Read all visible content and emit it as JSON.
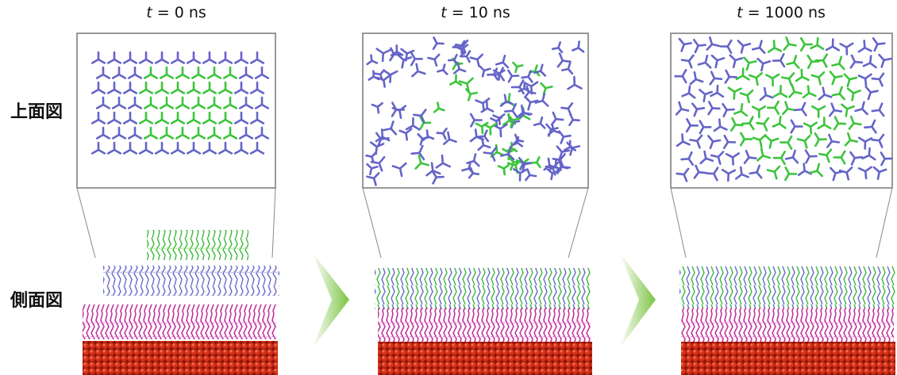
{
  "panels": [
    {
      "time_var": "t",
      "time_text": "= 0 ns"
    },
    {
      "time_var": "t",
      "time_text": "= 10 ns"
    },
    {
      "time_var": "t",
      "time_text": "= 1000 ns"
    }
  ],
  "row_labels": [
    "上面図",
    "側面図"
  ]
}
